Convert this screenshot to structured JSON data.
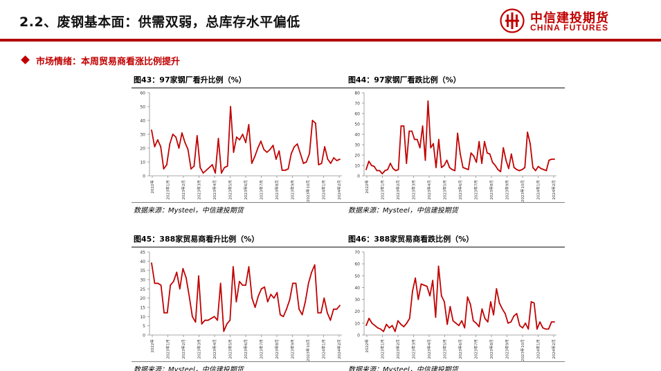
{
  "header": {
    "title": "2.2、废钢基本面：供需双弱，总库存水平偏低",
    "logo_cn": "中信建投期货",
    "logo_en": "CHINA FUTURES"
  },
  "section": {
    "title": "市场情绪：本周贸易商看涨比例提升"
  },
  "source_text": "数据来源：Mysteel，中信建投期货",
  "colors": {
    "accent": "#c00000",
    "line": "#c00000",
    "rule": "#7f7f7f"
  },
  "chart_data": [
    {
      "type": "line",
      "title": "图43：97家钢厂看升比例（%）",
      "ylim": [
        0,
        60
      ],
      "yticks": [
        0,
        10,
        20,
        30,
        40,
        50,
        60
      ],
      "x_labels": [
        "2022年",
        "2023年1月",
        "2023年2月",
        "2023年3月",
        "2023年4月",
        "2023年5月",
        "2023年6月",
        "2023年7月",
        "2023年8月",
        "2023年9月",
        "2023年10月",
        "2024年1月",
        "2024年2月"
      ],
      "series": [
        {
          "values": [
            33,
            21,
            26,
            21,
            5,
            8,
            23,
            30,
            28,
            20,
            31,
            24,
            19,
            5,
            7,
            29,
            6,
            2,
            4,
            6,
            8,
            2,
            27,
            2,
            6,
            7,
            50,
            17,
            28,
            26,
            30,
            24,
            37,
            9,
            14,
            20,
            25,
            19,
            17,
            19,
            22,
            12,
            18,
            4,
            4,
            5,
            16,
            21,
            23,
            16,
            9,
            10,
            16,
            40,
            38,
            8,
            9,
            21,
            12,
            9,
            13,
            11,
            12
          ]
        }
      ]
    },
    {
      "type": "line",
      "title": "图44：97家钢厂看跌比例（%）",
      "ylim": [
        0,
        80
      ],
      "yticks": [
        0,
        10,
        20,
        30,
        40,
        50,
        60,
        70,
        80
      ],
      "x_labels": [
        "2022年",
        "2023年1月",
        "2023年2月",
        "2023年3月",
        "2023年4月",
        "2023年5月",
        "2023年6月",
        "2023年7月",
        "2023年8月",
        "2023年9月",
        "2023年10月",
        "2024年1月",
        "2024年2月"
      ],
      "series": [
        {
          "values": [
            6,
            14,
            10,
            9,
            5,
            5,
            2,
            5,
            6,
            12,
            7,
            5,
            6,
            48,
            48,
            12,
            43,
            43,
            35,
            35,
            27,
            48,
            15,
            72,
            27,
            31,
            8,
            35,
            8,
            10,
            15,
            8,
            6,
            5,
            41,
            21,
            8,
            7,
            6,
            22,
            19,
            13,
            33,
            12,
            33,
            22,
            21,
            13,
            10,
            6,
            4,
            27,
            15,
            7,
            21,
            8,
            6,
            5,
            6,
            8,
            42,
            31,
            8,
            5,
            9,
            7,
            6,
            5,
            15,
            16,
            16
          ]
        }
      ]
    },
    {
      "type": "line",
      "title": "图45：388家贸易商看升比例（%）",
      "ylim": [
        0,
        45
      ],
      "yticks": [
        0,
        5,
        10,
        15,
        20,
        25,
        30,
        35,
        40,
        45
      ],
      "x_labels": [
        "2022年",
        "2023年1月",
        "2023年2月",
        "2023年3月",
        "2023年4月",
        "2023年5月",
        "2023年6月",
        "2023年7月",
        "2023年8月",
        "2023年9月",
        "2023年10月",
        "2024年1月",
        "2024年2月"
      ],
      "series": [
        {
          "values": [
            39,
            28,
            28,
            27,
            12,
            12,
            27,
            29,
            34,
            25,
            36,
            31,
            21,
            10,
            7,
            32,
            6,
            8,
            8,
            9,
            10,
            8,
            28,
            2,
            6,
            8,
            37,
            18,
            29,
            27,
            27,
            37,
            20,
            15,
            21,
            25,
            26,
            18,
            22,
            20,
            23,
            11,
            10,
            14,
            19,
            28,
            28,
            14,
            11,
            18,
            28,
            34,
            38,
            12,
            12,
            20,
            12,
            8,
            14,
            14,
            16
          ]
        }
      ]
    },
    {
      "type": "line",
      "title": "图46：388家贸易商看跌比例（%）",
      "ylim": [
        0,
        70
      ],
      "yticks": [
        0,
        10,
        20,
        30,
        40,
        50,
        60,
        70
      ],
      "x_labels": [
        "2022年",
        "2023年1月",
        "2023年2月",
        "2023年3月",
        "2023年4月",
        "2023年5月",
        "2023年6月",
        "2023年7月",
        "2023年8月",
        "2023年9月",
        "2023年10月",
        "2024年1月",
        "2024年2月"
      ],
      "series": [
        {
          "values": [
            8,
            14,
            10,
            8,
            6,
            5,
            3,
            9,
            6,
            8,
            3,
            12,
            9,
            7,
            10,
            14,
            37,
            48,
            30,
            43,
            42,
            41,
            33,
            46,
            15,
            58,
            33,
            28,
            9,
            24,
            12,
            10,
            8,
            12,
            6,
            32,
            26,
            12,
            10,
            7,
            22,
            14,
            11,
            28,
            17,
            39,
            27,
            22,
            18,
            10,
            11,
            16,
            18,
            8,
            6,
            10,
            5,
            28,
            27,
            5,
            11,
            6,
            5,
            5,
            11,
            11
          ]
        }
      ]
    }
  ]
}
